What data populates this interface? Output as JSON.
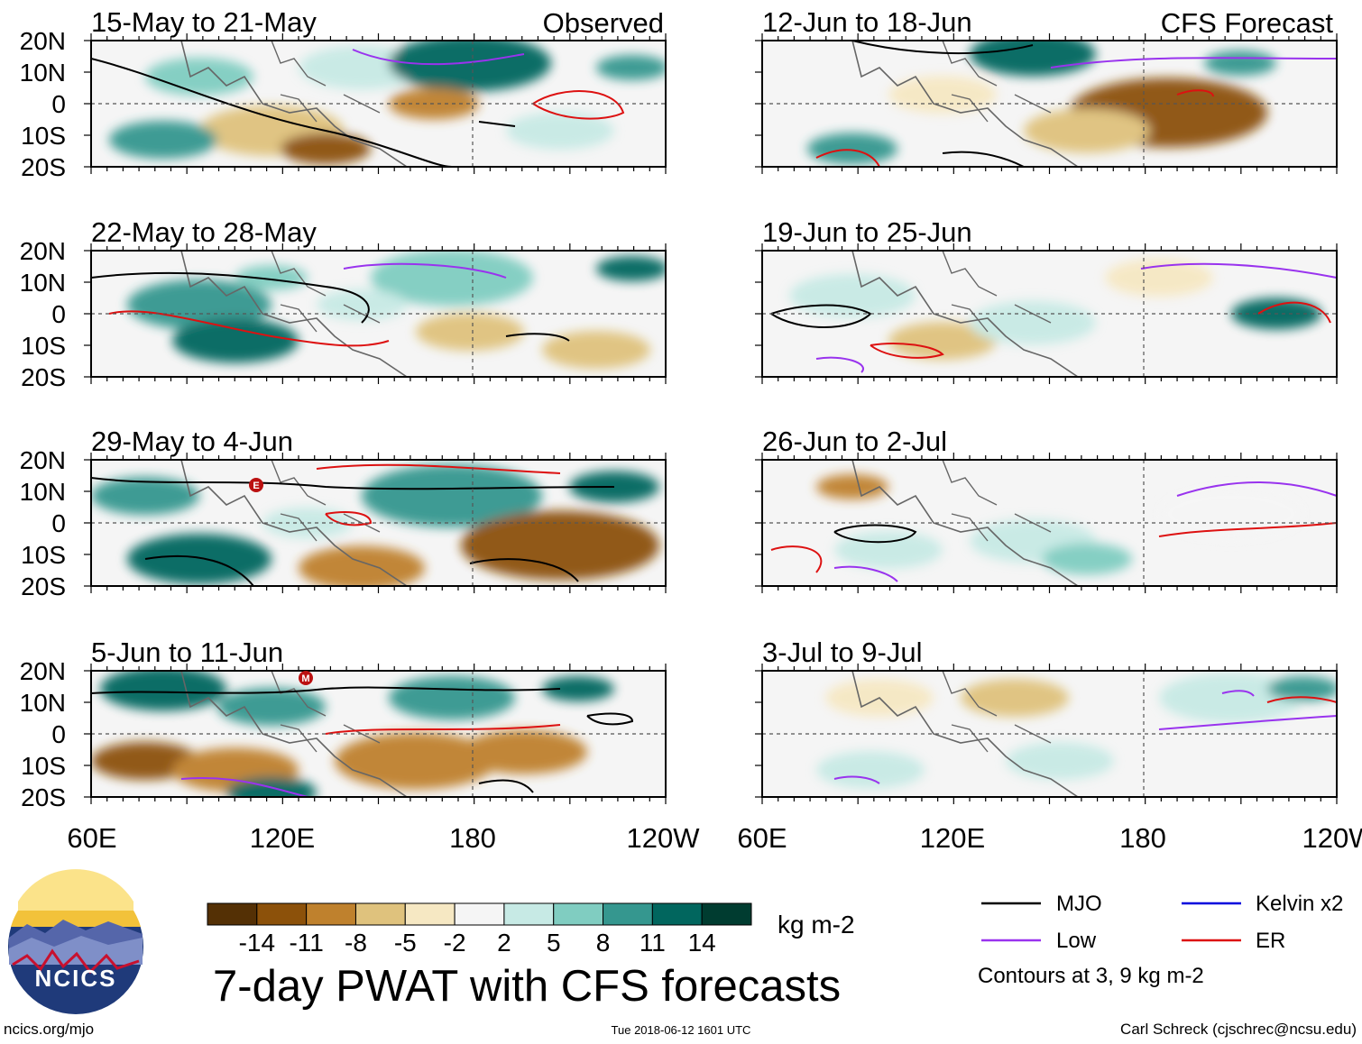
{
  "header": {
    "observed_label": "Observed",
    "forecast_label": "CFS Forecast"
  },
  "panels": [
    {
      "title": "15-May to 21-May",
      "column": "observed"
    },
    {
      "title": "22-May to 28-May",
      "column": "observed"
    },
    {
      "title": "29-May to 4-Jun",
      "column": "observed"
    },
    {
      "title": "5-Jun to 11-Jun",
      "column": "observed"
    },
    {
      "title": "12-Jun to 18-Jun",
      "column": "forecast"
    },
    {
      "title": "19-Jun to 25-Jun",
      "column": "forecast"
    },
    {
      "title": "26-Jun to 2-Jul",
      "column": "forecast"
    },
    {
      "title": "3-Jul to 9-Jul",
      "column": "forecast"
    }
  ],
  "axes": {
    "lat_labels": [
      "20N",
      "10N",
      "0",
      "10S",
      "20S"
    ],
    "lon_labels": [
      "60E",
      "120E",
      "180",
      "120W"
    ]
  },
  "markers": [
    {
      "panel": 2,
      "letter": "E"
    },
    {
      "panel": 3,
      "letter": "M"
    }
  ],
  "colorbar": {
    "ticks": [
      "-14",
      "-11",
      "-8",
      "-5",
      "-2",
      "2",
      "5",
      "8",
      "11",
      "14"
    ],
    "colors": [
      "#543005",
      "#8c510a",
      "#bf812d",
      "#dfc27d",
      "#f6e8c3",
      "#f5f5f5",
      "#c7eae5",
      "#80cdc1",
      "#35978f",
      "#01665e",
      "#003c30"
    ],
    "units": "kg m-2"
  },
  "title": "7-day PWAT with CFS forecasts",
  "legend": {
    "items": [
      {
        "label": "MJO",
        "color": "#000000"
      },
      {
        "label": "Kelvin x2",
        "color": "#0000dd"
      },
      {
        "label": "Low",
        "color": "#9933ee"
      },
      {
        "label": "ER",
        "color": "#dd1111"
      }
    ],
    "note": "Contours at 3, 9 kg m-2"
  },
  "logo": {
    "text": "NCICS"
  },
  "footer": {
    "url": "ncics.org/mjo",
    "timestamp": "Tue 2018-06-12 1601 UTC",
    "credit": "Carl Schreck (cjschrec@ncsu.edu)"
  }
}
